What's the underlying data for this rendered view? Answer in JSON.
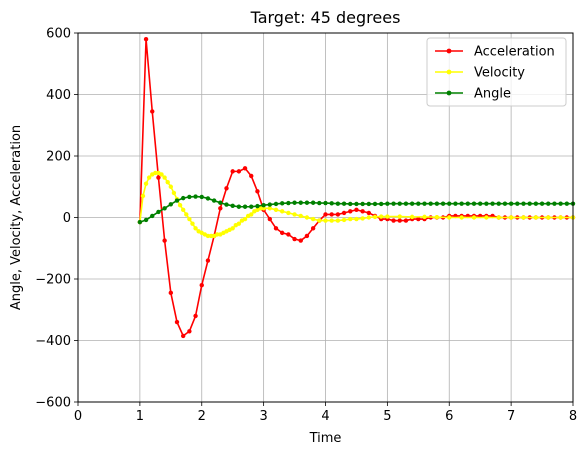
{
  "chart_data": {
    "type": "line",
    "title": "Target: 45 degrees",
    "xlabel": "Time",
    "ylabel": "Angle, Velocity, Acceleration",
    "xlim": [
      0,
      8
    ],
    "ylim": [
      -600,
      600
    ],
    "xticks": [
      0,
      1,
      2,
      3,
      4,
      5,
      6,
      7,
      8
    ],
    "yticks": [
      -600,
      -400,
      -200,
      0,
      200,
      400,
      600
    ],
    "grid": true,
    "legend_position": "top-right",
    "marker": "circle",
    "series": [
      {
        "name": "Acceleration",
        "color": "#ff0000",
        "x": [
          1.0,
          1.1,
          1.2,
          1.3,
          1.4,
          1.5,
          1.6,
          1.7,
          1.8,
          1.9,
          2.0,
          2.1,
          2.2,
          2.3,
          2.4,
          2.5,
          2.6,
          2.7,
          2.8,
          2.9,
          3.0,
          3.1,
          3.2,
          3.3,
          3.4,
          3.5,
          3.6,
          3.7,
          3.8,
          3.9,
          4.0,
          4.1,
          4.2,
          4.3,
          4.4,
          4.5,
          4.6,
          4.7,
          4.8,
          4.9,
          5.0,
          5.1,
          5.2,
          5.3,
          5.4,
          5.5,
          5.6,
          5.7,
          5.8,
          5.9,
          6.0,
          6.1,
          6.2,
          6.3,
          6.4,
          6.5,
          6.6,
          6.7,
          6.8,
          6.9,
          7.0,
          7.1,
          7.2,
          7.3,
          7.4,
          7.5,
          7.6,
          7.7,
          7.8,
          7.9,
          8.0
        ],
        "values": [
          -15,
          580,
          345,
          130,
          -75,
          -245,
          -340,
          -385,
          -370,
          -320,
          -220,
          -140,
          -60,
          30,
          95,
          150,
          150,
          160,
          135,
          85,
          25,
          -5,
          -35,
          -50,
          -55,
          -70,
          -75,
          -60,
          -35,
          -10,
          10,
          10,
          10,
          15,
          20,
          25,
          20,
          15,
          5,
          -5,
          -5,
          -10,
          -10,
          -10,
          -5,
          -5,
          -5,
          0,
          0,
          0,
          5,
          5,
          5,
          5,
          5,
          5,
          5,
          5,
          0,
          0,
          0,
          0,
          0,
          0,
          0,
          0,
          0,
          0,
          0,
          0,
          0
        ]
      },
      {
        "name": "Velocity",
        "color": "#ffff00",
        "x": [
          1.0,
          1.05,
          1.1,
          1.15,
          1.2,
          1.25,
          1.3,
          1.35,
          1.4,
          1.45,
          1.5,
          1.55,
          1.6,
          1.65,
          1.7,
          1.75,
          1.8,
          1.85,
          1.9,
          1.95,
          2.0,
          2.05,
          2.1,
          2.15,
          2.2,
          2.25,
          2.3,
          2.35,
          2.4,
          2.45,
          2.5,
          2.55,
          2.6,
          2.65,
          2.7,
          2.75,
          2.8,
          2.85,
          2.9,
          2.95,
          3.0,
          3.1,
          3.2,
          3.3,
          3.4,
          3.5,
          3.6,
          3.7,
          3.8,
          3.9,
          4.0,
          4.1,
          4.2,
          4.3,
          4.4,
          4.5,
          4.6,
          4.7,
          4.8,
          4.9,
          5.0,
          5.2,
          5.4,
          5.6,
          5.8,
          6.0,
          6.2,
          6.4,
          6.6,
          6.8,
          7.0,
          7.2,
          7.4,
          7.6,
          7.8,
          8.0
        ],
        "values": [
          -15,
          70,
          110,
          130,
          140,
          145,
          145,
          140,
          130,
          115,
          100,
          80,
          60,
          40,
          25,
          10,
          -5,
          -20,
          -35,
          -45,
          -50,
          -55,
          -60,
          -60,
          -60,
          -55,
          -55,
          -50,
          -45,
          -40,
          -35,
          -25,
          -20,
          -10,
          -5,
          5,
          10,
          20,
          25,
          30,
          30,
          30,
          25,
          20,
          15,
          10,
          5,
          0,
          -5,
          -10,
          -10,
          -10,
          -10,
          -8,
          -5,
          -5,
          -3,
          0,
          2,
          3,
          3,
          3,
          2,
          2,
          1,
          0,
          0,
          0,
          0,
          0,
          0,
          0,
          0,
          0,
          0,
          0
        ]
      },
      {
        "name": "Angle",
        "color": "#008000",
        "x": [
          1.0,
          1.1,
          1.2,
          1.3,
          1.4,
          1.5,
          1.6,
          1.7,
          1.8,
          1.9,
          2.0,
          2.1,
          2.2,
          2.3,
          2.4,
          2.5,
          2.6,
          2.7,
          2.8,
          2.9,
          3.0,
          3.1,
          3.2,
          3.3,
          3.4,
          3.5,
          3.6,
          3.7,
          3.8,
          3.9,
          4.0,
          4.1,
          4.2,
          4.3,
          4.4,
          4.5,
          4.6,
          4.7,
          4.8,
          4.9,
          5.0,
          5.1,
          5.2,
          5.3,
          5.4,
          5.5,
          5.6,
          5.7,
          5.8,
          5.9,
          6.0,
          6.1,
          6.2,
          6.3,
          6.4,
          6.5,
          6.6,
          6.7,
          6.8,
          6.9,
          7.0,
          7.1,
          7.2,
          7.3,
          7.4,
          7.5,
          7.6,
          7.7,
          7.8,
          7.9,
          8.0
        ],
        "values": [
          -15,
          -8,
          5,
          18,
          30,
          43,
          55,
          63,
          67,
          68,
          67,
          62,
          55,
          48,
          42,
          38,
          35,
          35,
          35,
          37,
          40,
          42,
          44,
          46,
          47,
          48,
          48,
          48,
          48,
          47,
          47,
          46,
          45,
          45,
          44,
          44,
          44,
          44,
          44,
          44,
          45,
          45,
          45,
          45,
          45,
          45,
          45,
          45,
          45,
          45,
          45,
          45,
          45,
          45,
          45,
          45,
          45,
          45,
          45,
          45,
          45,
          45,
          45,
          45,
          45,
          45,
          45,
          45,
          45,
          45,
          45
        ]
      }
    ]
  }
}
